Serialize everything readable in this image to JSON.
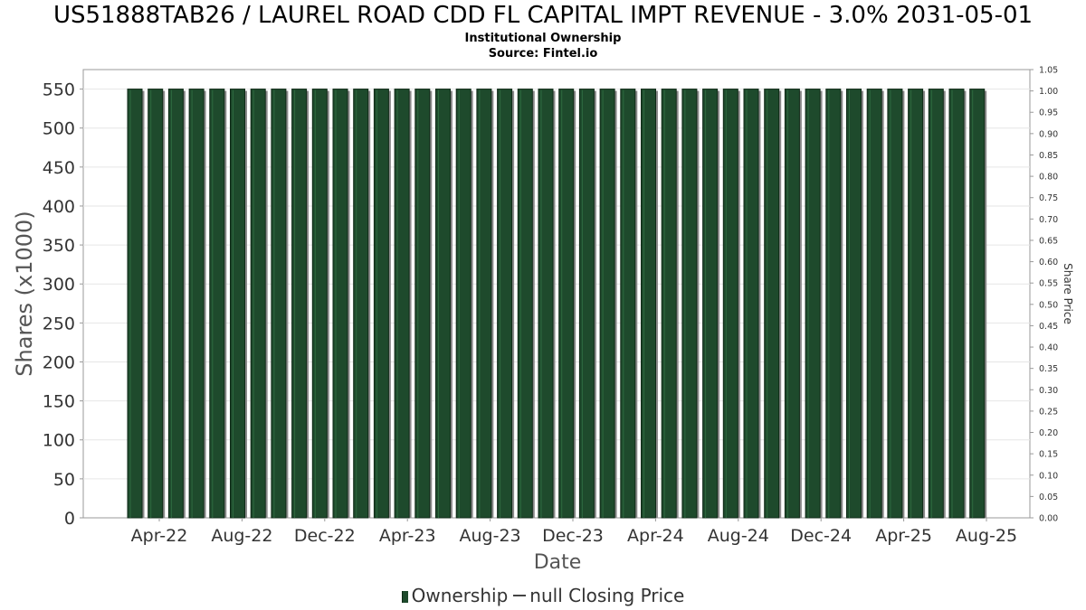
{
  "header": {
    "title": "US51888TAB26 / LAUREL ROAD CDD FL CAPITAL IMPT REVENUE - 3.0% 2031-05-01",
    "subtitle": "Institutional Ownership",
    "source": "Source: Fintel.io"
  },
  "legend": {
    "ownership": "Ownership",
    "price": "null Closing Price"
  },
  "colors": {
    "bar": "#1e4a2c",
    "bar_edge": "#0f2a17",
    "bar_shadow": "#8a8a8a",
    "grid": "#e6e6e6"
  },
  "chart_data": {
    "type": "bar",
    "title": "US51888TAB26 / LAUREL ROAD CDD FL CAPITAL IMPT REVENUE - 3.0% 2031-05-01",
    "subtitle": "Institutional Ownership",
    "xlabel": "Date",
    "ylabel": "Shares (x1000)",
    "y2label": "Share Price",
    "ylim": [
      0,
      575
    ],
    "y2lim": [
      0,
      1.05
    ],
    "yticks": [
      0,
      50,
      100,
      150,
      200,
      250,
      300,
      350,
      400,
      450,
      500,
      550
    ],
    "y2ticks": [
      "0.00",
      "0.05",
      "0.10",
      "0.15",
      "0.20",
      "0.25",
      "0.30",
      "0.35",
      "0.40",
      "0.45",
      "0.50",
      "0.55",
      "0.60",
      "0.65",
      "0.70",
      "0.75",
      "0.80",
      "0.85",
      "0.90",
      "0.95",
      "1.00",
      "1.05"
    ],
    "xticks": [
      "Apr-22",
      "Aug-22",
      "Dec-22",
      "Apr-23",
      "Aug-23",
      "Dec-23",
      "Apr-24",
      "Aug-24",
      "Dec-24",
      "Apr-25",
      "Aug-25"
    ],
    "grid": true,
    "legend_position": "bottom",
    "series": [
      {
        "name": "Ownership",
        "values": [
          550,
          550,
          550,
          550,
          550,
          550,
          550,
          550,
          550,
          550,
          550,
          550,
          550,
          550,
          550,
          550,
          550,
          550,
          550,
          550,
          550,
          550,
          550,
          550,
          550,
          550,
          550,
          550,
          550,
          550,
          550,
          550,
          550,
          550,
          550,
          550,
          550,
          550,
          550,
          550,
          550,
          550
        ]
      }
    ]
  }
}
